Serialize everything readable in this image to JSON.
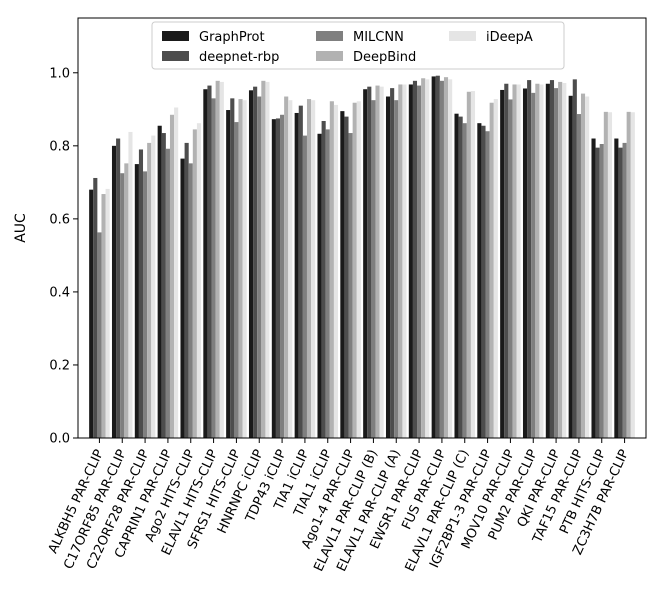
{
  "chart_data": {
    "type": "bar",
    "title": "",
    "xlabel": "",
    "ylabel": "AUC",
    "ylim": [
      0.0,
      1.15
    ],
    "yticks": [
      0.0,
      0.2,
      0.4,
      0.6,
      0.8,
      1.0
    ],
    "ytick_labels": [
      "0.0",
      "0.2",
      "0.4",
      "0.6",
      "0.8",
      "1.0"
    ],
    "grid": false,
    "legend_position": "top-center",
    "categories": [
      "ALKBH5 PAR-CLIP",
      "C17ORF85 PAR-CLIP",
      "C22ORF28 PAR-CLIP",
      "CAPRIN1 PAR-CLIP",
      "Ago2 HITS-CLIP",
      "ELAVL1 HITS-CLIP",
      "SFRS1 HITS-CLIP",
      "HNRNPC iCLIP",
      "TDP43 iCLIP",
      "TIA1 iCLIP",
      "TIAL1 iCLIP",
      "Ago1-4 PAR-CLIP",
      "ELAVL1 PAR-CLIP (B)",
      "ELAVL1 PAR-CLIP (A)",
      "EWSR1 PAR-CLIP",
      "FUS PAR-CLIP",
      "ELAVL1 PAR-CLIP (C)",
      "IGF2BP1-3 PAR-CLIP",
      "MOV10 PAR-CLIP",
      "PUM2 PAR-CLIP",
      "QKI PAR-CLIP",
      "TAF15 PAR-CLIP",
      "PTB HITS-CLIP",
      "ZC3H7B PAR-CLIP"
    ],
    "series": [
      {
        "name": "GraphProt",
        "color": "#1a1a1a",
        "values": [
          0.68,
          0.8,
          0.75,
          0.855,
          0.765,
          0.955,
          0.898,
          0.952,
          0.873,
          0.89,
          0.833,
          0.895,
          0.955,
          0.935,
          0.968,
          0.99,
          0.888,
          0.862,
          0.953,
          0.957,
          0.97,
          0.937,
          0.82,
          0.82
        ]
      },
      {
        "name": "deepnet-rbp",
        "color": "#4d4d4d",
        "values": [
          0.712,
          0.82,
          0.79,
          0.835,
          0.808,
          0.965,
          0.93,
          0.962,
          0.875,
          0.91,
          0.868,
          0.88,
          0.962,
          0.958,
          0.978,
          0.992,
          0.88,
          0.855,
          0.97,
          0.98,
          0.98,
          0.982,
          0.795,
          0.795
        ]
      },
      {
        "name": "MILCNN",
        "color": "#7f7f7f",
        "values": [
          0.563,
          0.725,
          0.73,
          0.792,
          0.752,
          0.93,
          0.865,
          0.935,
          0.885,
          0.828,
          0.845,
          0.835,
          0.925,
          0.925,
          0.965,
          0.978,
          0.862,
          0.84,
          0.927,
          0.945,
          0.958,
          0.887,
          0.805,
          0.808
        ]
      },
      {
        "name": "DeepBind",
        "color": "#b2b2b2",
        "values": [
          0.668,
          0.752,
          0.808,
          0.885,
          0.845,
          0.978,
          0.928,
          0.978,
          0.935,
          0.928,
          0.922,
          0.918,
          0.965,
          0.968,
          0.985,
          0.988,
          0.948,
          0.918,
          0.968,
          0.97,
          0.975,
          0.943,
          0.893,
          0.893
        ]
      },
      {
        "name": "iDeepA",
        "color": "#e5e5e5",
        "values": [
          0.682,
          0.838,
          0.828,
          0.905,
          0.862,
          0.975,
          0.925,
          0.975,
          0.925,
          0.925,
          0.912,
          0.922,
          0.962,
          0.968,
          0.982,
          0.982,
          0.95,
          0.928,
          0.968,
          0.968,
          0.972,
          0.935,
          0.892,
          0.892
        ]
      }
    ]
  }
}
